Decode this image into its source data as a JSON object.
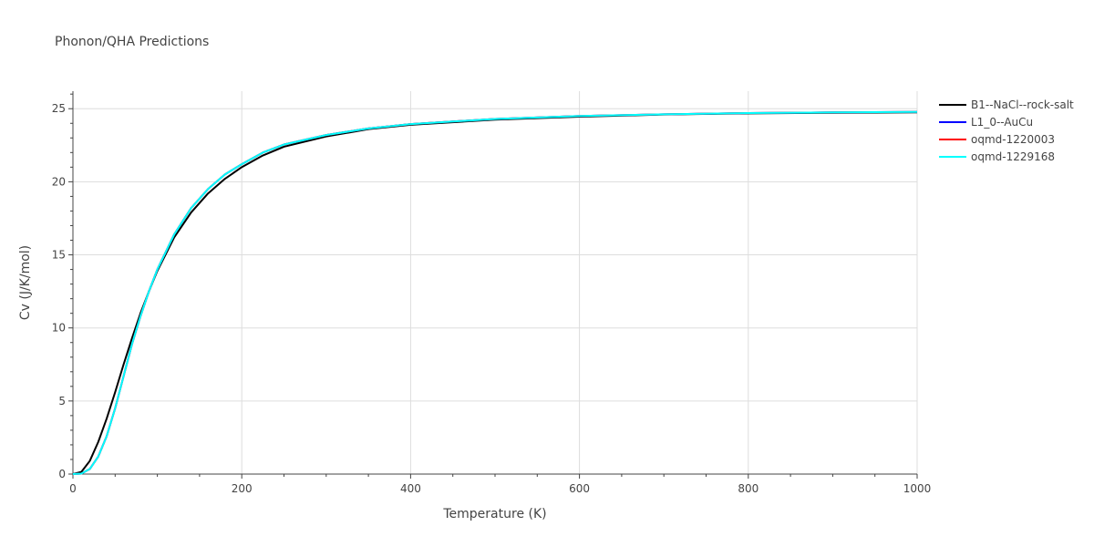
{
  "chart_data": {
    "type": "line",
    "title": "Phonon/QHA Predictions",
    "xlabel": "Temperature (K)",
    "ylabel": "Cv (J/K/mol)",
    "xlim": [
      0,
      1000
    ],
    "ylim": [
      0,
      26.2
    ],
    "xticks": [
      0,
      200,
      400,
      600,
      800,
      1000
    ],
    "yticks": [
      0,
      5,
      10,
      15,
      20,
      25
    ],
    "xtick_labels": [
      "0",
      "200",
      "400",
      "600",
      "800",
      "1000"
    ],
    "ytick_labels": [
      "0",
      "5",
      "10",
      "15",
      "20",
      "25"
    ],
    "grid": true,
    "legend_position": "top-right",
    "series": [
      {
        "name": "B1--NaCl--rock-salt",
        "color": "#000000",
        "x": [
          0,
          10,
          20,
          30,
          40,
          50,
          60,
          70,
          80,
          90,
          100,
          120,
          140,
          160,
          180,
          200,
          225,
          250,
          300,
          350,
          400,
          500,
          600,
          700,
          800,
          900,
          1000
        ],
        "y": [
          0,
          0.15,
          0.9,
          2.2,
          3.8,
          5.6,
          7.5,
          9.3,
          11.0,
          12.5,
          13.9,
          16.2,
          17.9,
          19.2,
          20.2,
          21.0,
          21.8,
          22.4,
          23.1,
          23.6,
          23.9,
          24.25,
          24.45,
          24.6,
          24.68,
          24.72,
          24.75
        ]
      },
      {
        "name": "L1_0--AuCu",
        "color": "#0000ff",
        "x": [
          0,
          10,
          20,
          30,
          40,
          50,
          60,
          70,
          80,
          90,
          100,
          120,
          140,
          160,
          180,
          200,
          225,
          250,
          300,
          350,
          400,
          500,
          600,
          700,
          800,
          900,
          1000
        ],
        "y": [
          0,
          0.03,
          0.35,
          1.2,
          2.6,
          4.5,
          6.7,
          8.9,
          10.8,
          12.5,
          14.0,
          16.4,
          18.2,
          19.5,
          20.5,
          21.2,
          22.0,
          22.55,
          23.2,
          23.65,
          23.95,
          24.3,
          24.5,
          24.62,
          24.7,
          24.75,
          24.78
        ]
      },
      {
        "name": "oqmd-1220003",
        "color": "#ff0000",
        "x": [
          0,
          10,
          20,
          30,
          40,
          50,
          60,
          70,
          80,
          90,
          100,
          120,
          140,
          160,
          180,
          200,
          225,
          250,
          300,
          350,
          400,
          500,
          600,
          700,
          800,
          900,
          1000
        ],
        "y": [
          0,
          0.03,
          0.35,
          1.2,
          2.6,
          4.5,
          6.7,
          8.9,
          10.8,
          12.5,
          14.0,
          16.4,
          18.2,
          19.5,
          20.5,
          21.2,
          22.0,
          22.55,
          23.2,
          23.65,
          23.95,
          24.3,
          24.5,
          24.62,
          24.7,
          24.75,
          24.78
        ]
      },
      {
        "name": "oqmd-1229168",
        "color": "#00ffff",
        "x": [
          0,
          10,
          20,
          30,
          40,
          50,
          60,
          70,
          80,
          90,
          100,
          120,
          140,
          160,
          180,
          200,
          225,
          250,
          300,
          350,
          400,
          500,
          600,
          700,
          800,
          900,
          1000
        ],
        "y": [
          0,
          0.03,
          0.35,
          1.2,
          2.6,
          4.5,
          6.7,
          8.9,
          10.8,
          12.5,
          14.0,
          16.4,
          18.2,
          19.5,
          20.5,
          21.2,
          22.0,
          22.55,
          23.2,
          23.65,
          23.95,
          24.3,
          24.5,
          24.62,
          24.7,
          24.75,
          24.78
        ]
      }
    ]
  }
}
